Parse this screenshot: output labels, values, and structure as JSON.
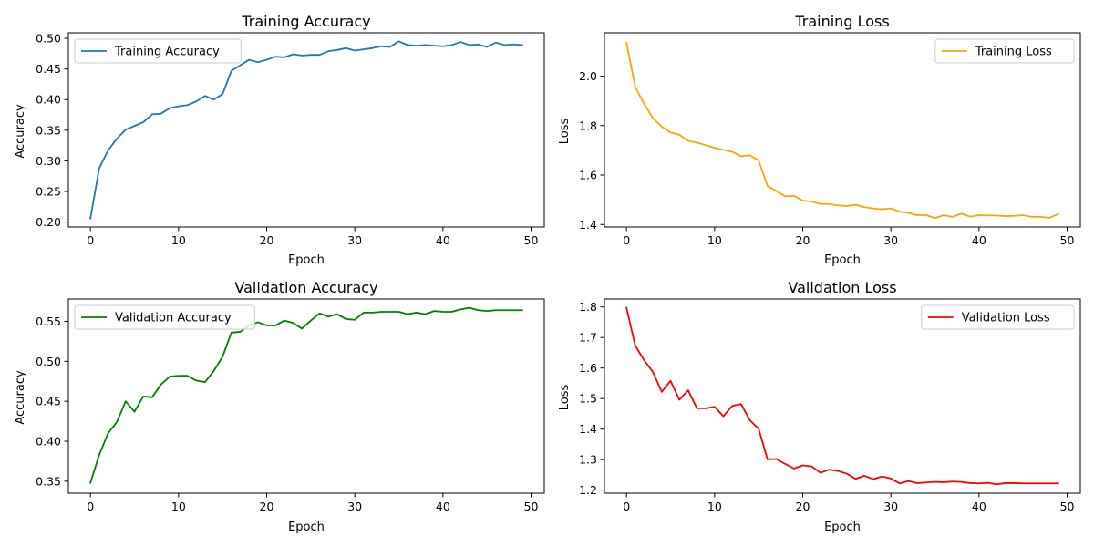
{
  "chart_data": [
    {
      "type": "line",
      "title": "Training Accuracy",
      "xlabel": "Epoch",
      "ylabel": "Accuracy",
      "xlim": [
        -2.5,
        51.5
      ],
      "ylim": [
        0.192,
        0.509
      ],
      "xticks": [
        0,
        10,
        20,
        30,
        40,
        50
      ],
      "yticks": [
        0.2,
        0.25,
        0.3,
        0.35,
        0.4,
        0.45,
        0.5
      ],
      "ytick_labels": [
        "0.20",
        "0.25",
        "0.30",
        "0.35",
        "0.40",
        "0.45",
        "0.50"
      ],
      "legend_position": "upper-left",
      "grid": false,
      "series": [
        {
          "name": "Training Accuracy",
          "color": "#1f77b4",
          "x": [
            0,
            1,
            2,
            3,
            4,
            5,
            6,
            7,
            8,
            9,
            10,
            11,
            12,
            13,
            14,
            15,
            16,
            17,
            18,
            19,
            20,
            21,
            22,
            23,
            24,
            25,
            26,
            27,
            28,
            29,
            30,
            31,
            32,
            33,
            34,
            35,
            36,
            37,
            38,
            39,
            40,
            41,
            42,
            43,
            44,
            45,
            46,
            47,
            48,
            49
          ],
          "y": [
            0.206,
            0.288,
            0.317,
            0.336,
            0.351,
            0.357,
            0.363,
            0.376,
            0.377,
            0.386,
            0.389,
            0.391,
            0.397,
            0.406,
            0.4,
            0.409,
            0.447,
            0.456,
            0.465,
            0.461,
            0.465,
            0.47,
            0.469,
            0.474,
            0.472,
            0.473,
            0.473,
            0.479,
            0.481,
            0.484,
            0.48,
            0.482,
            0.484,
            0.487,
            0.486,
            0.495,
            0.489,
            0.488,
            0.489,
            0.488,
            0.487,
            0.489,
            0.494,
            0.489,
            0.49,
            0.486,
            0.493,
            0.489,
            0.49,
            0.489
          ]
        }
      ]
    },
    {
      "type": "line",
      "title": "Training Loss",
      "xlabel": "Epoch",
      "ylabel": "Loss",
      "xlim": [
        -2.5,
        51.5
      ],
      "ylim": [
        1.39,
        2.175
      ],
      "xticks": [
        0,
        10,
        20,
        30,
        40,
        50
      ],
      "yticks": [
        1.4,
        1.6,
        1.8,
        2.0
      ],
      "ytick_labels": [
        "1.4",
        "1.6",
        "1.8",
        "2.0"
      ],
      "legend_position": "upper-right",
      "grid": false,
      "series": [
        {
          "name": "Training Loss",
          "color": "#ffa500",
          "x": [
            0,
            1,
            2,
            3,
            4,
            5,
            6,
            7,
            8,
            9,
            10,
            11,
            12,
            13,
            14,
            15,
            16,
            17,
            18,
            19,
            20,
            21,
            22,
            23,
            24,
            25,
            26,
            27,
            28,
            29,
            30,
            31,
            32,
            33,
            34,
            35,
            36,
            37,
            38,
            39,
            40,
            41,
            42,
            43,
            44,
            45,
            46,
            47,
            48,
            49
          ],
          "y": [
            2.135,
            1.955,
            1.888,
            1.83,
            1.796,
            1.772,
            1.763,
            1.738,
            1.731,
            1.721,
            1.71,
            1.702,
            1.694,
            1.676,
            1.68,
            1.659,
            1.556,
            1.536,
            1.514,
            1.516,
            1.497,
            1.493,
            1.483,
            1.483,
            1.477,
            1.475,
            1.48,
            1.47,
            1.465,
            1.462,
            1.465,
            1.452,
            1.447,
            1.438,
            1.438,
            1.426,
            1.438,
            1.431,
            1.444,
            1.432,
            1.438,
            1.437,
            1.436,
            1.434,
            1.435,
            1.438,
            1.431,
            1.431,
            1.427,
            1.443
          ]
        }
      ]
    },
    {
      "type": "line",
      "title": "Validation Accuracy",
      "xlabel": "Epoch",
      "ylabel": "Accuracy",
      "xlim": [
        -2.5,
        51.5
      ],
      "ylim": [
        0.335,
        0.578
      ],
      "xticks": [
        0,
        10,
        20,
        30,
        40,
        50
      ],
      "yticks": [
        0.35,
        0.4,
        0.45,
        0.5,
        0.55
      ],
      "ytick_labels": [
        "0.35",
        "0.40",
        "0.45",
        "0.50",
        "0.55"
      ],
      "legend_position": "upper-left",
      "grid": false,
      "series": [
        {
          "name": "Validation Accuracy",
          "color": "#008000",
          "x": [
            0,
            1,
            2,
            3,
            4,
            5,
            6,
            7,
            8,
            9,
            10,
            11,
            12,
            13,
            14,
            15,
            16,
            17,
            18,
            19,
            20,
            21,
            22,
            23,
            24,
            25,
            26,
            27,
            28,
            29,
            30,
            31,
            32,
            33,
            34,
            35,
            36,
            37,
            38,
            39,
            40,
            41,
            42,
            43,
            44,
            45,
            46,
            47,
            48,
            49
          ],
          "y": [
            0.348,
            0.383,
            0.41,
            0.424,
            0.45,
            0.437,
            0.456,
            0.455,
            0.471,
            0.481,
            0.482,
            0.482,
            0.476,
            0.474,
            0.488,
            0.506,
            0.536,
            0.537,
            0.545,
            0.549,
            0.545,
            0.545,
            0.551,
            0.548,
            0.541,
            0.551,
            0.56,
            0.556,
            0.559,
            0.553,
            0.552,
            0.561,
            0.561,
            0.562,
            0.562,
            0.562,
            0.559,
            0.561,
            0.559,
            0.563,
            0.562,
            0.562,
            0.565,
            0.567,
            0.564,
            0.563,
            0.564,
            0.564,
            0.564,
            0.564
          ]
        }
      ]
    },
    {
      "type": "line",
      "title": "Validation Loss",
      "xlabel": "Epoch",
      "ylabel": "Loss",
      "xlim": [
        -2.5,
        51.5
      ],
      "ylim": [
        1.19,
        1.826
      ],
      "xticks": [
        0,
        10,
        20,
        30,
        40,
        50
      ],
      "yticks": [
        1.2,
        1.3,
        1.4,
        1.5,
        1.6,
        1.7,
        1.8
      ],
      "ytick_labels": [
        "1.2",
        "1.3",
        "1.4",
        "1.5",
        "1.6",
        "1.7",
        "1.8"
      ],
      "legend_position": "upper-right",
      "grid": false,
      "series": [
        {
          "name": "Validation Loss",
          "color": "#ff0000",
          "x": [
            0,
            1,
            2,
            3,
            4,
            5,
            6,
            7,
            8,
            9,
            10,
            11,
            12,
            13,
            14,
            15,
            16,
            17,
            18,
            19,
            20,
            21,
            22,
            23,
            24,
            25,
            26,
            27,
            28,
            29,
            30,
            31,
            32,
            33,
            34,
            35,
            36,
            37,
            38,
            39,
            40,
            41,
            42,
            43,
            44,
            45,
            46,
            47,
            48,
            49
          ],
          "y": [
            1.797,
            1.673,
            1.626,
            1.587,
            1.522,
            1.558,
            1.496,
            1.527,
            1.468,
            1.468,
            1.473,
            1.442,
            1.476,
            1.482,
            1.429,
            1.401,
            1.301,
            1.302,
            1.286,
            1.271,
            1.281,
            1.278,
            1.257,
            1.267,
            1.263,
            1.254,
            1.237,
            1.247,
            1.236,
            1.245,
            1.238,
            1.222,
            1.23,
            1.223,
            1.225,
            1.227,
            1.226,
            1.228,
            1.227,
            1.223,
            1.222,
            1.224,
            1.219,
            1.223,
            1.223,
            1.222,
            1.222,
            1.222,
            1.222,
            1.222
          ]
        }
      ]
    }
  ]
}
